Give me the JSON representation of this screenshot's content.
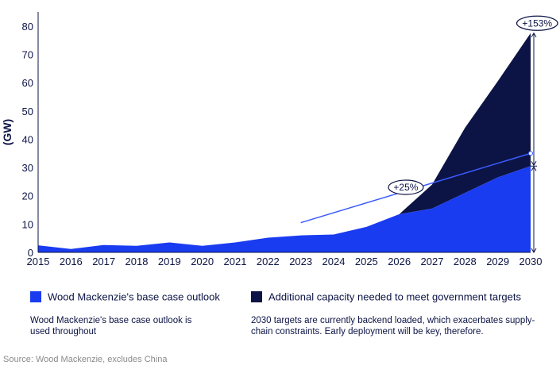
{
  "chart_data": {
    "type": "area",
    "ylabel": "(GW)",
    "x": [
      2015,
      2016,
      2017,
      2018,
      2019,
      2020,
      2021,
      2022,
      2023,
      2024,
      2025,
      2026,
      2027,
      2028,
      2029,
      2030
    ],
    "xticks": [
      "2015",
      "2016",
      "2017",
      "2018",
      "2019",
      "2020",
      "2021",
      "2022",
      "2023",
      "2024",
      "2025",
      "2026",
      "2027",
      "2028",
      "2029",
      "2030"
    ],
    "ylim": [
      0,
      85
    ],
    "yticks": [
      "0",
      "10",
      "20",
      "30",
      "40",
      "50",
      "60",
      "70",
      "80"
    ],
    "series": [
      {
        "name": "Wood Mackenzie's base case outlook",
        "color": "#1a3cf0",
        "values": [
          2.5,
          1.2,
          2.6,
          2.3,
          3.5,
          2.3,
          3.5,
          5.2,
          6.0,
          6.3,
          9.0,
          13.5,
          15.5,
          21.0,
          26.5,
          30.5
        ]
      },
      {
        "name": "Additional capacity needed to meet government targets",
        "color": "#0c1445",
        "values": [
          0,
          0,
          0,
          0,
          0,
          0,
          0,
          0,
          0,
          0,
          0,
          0,
          8.5,
          23.0,
          34.0,
          47.0
        ]
      }
    ],
    "trend_line": {
      "x": [
        2023,
        2030
      ],
      "y": [
        10.5,
        35
      ]
    },
    "annotations": [
      {
        "label": "+25%",
        "x": 2026.2,
        "y": 23
      },
      {
        "label": "+153%",
        "x": 2030.2,
        "y": 81
      }
    ]
  },
  "legend": [
    {
      "label": "Wood Mackenzie's base case outlook",
      "color": "#1a3cf0",
      "desc": "Wood Mackenzie's base case outlook is used throughout"
    },
    {
      "label": "Additional capacity needed to meet government targets",
      "color": "#0c1445",
      "desc": "2030 targets are currently backend loaded, which exacerbates supply-chain constraints. Early deployment will be key, therefore."
    }
  ],
  "source": "Source: Wood Mackenzie, excludes China"
}
